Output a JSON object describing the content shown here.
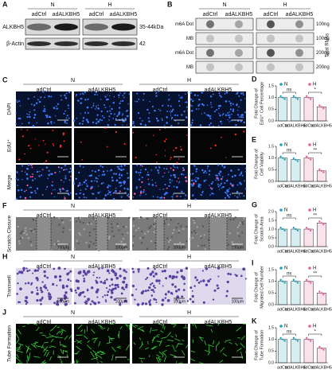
{
  "panel_A": {
    "label": "A",
    "groups": [
      "N",
      "H"
    ],
    "columns": [
      "adCtrl",
      "adALKBH5",
      "adCtrl",
      "adALKBH5"
    ],
    "rows": [
      {
        "name": "ALKBH5",
        "size": "35-44kDa"
      },
      {
        "name": "β-Actin",
        "size": "42"
      }
    ]
  },
  "panel_B": {
    "label": "B",
    "groups": [
      "N",
      "H"
    ],
    "columns": [
      "adCtrl",
      "adALKBH5",
      "adCtrl",
      "adALKBH5"
    ],
    "rows": [
      {
        "name": "m6A Dot",
        "amount": "100ng"
      },
      {
        "name": "MB",
        "amount": "100ng"
      },
      {
        "name": "m6A Dot",
        "amount": "200ng"
      },
      {
        "name": "MB",
        "amount": "200ng"
      }
    ],
    "side_label": "Total RNAs"
  },
  "image_panels": [
    {
      "label": "C",
      "groups": [
        "N",
        "H"
      ],
      "columns": [
        "adCtrl",
        "adALKBH5",
        "adCtrl",
        "adALKBH5"
      ],
      "rows": [
        "DAPI",
        "EdU⁺",
        "Merge"
      ],
      "scale_bar": "200μm"
    },
    {
      "label": "F",
      "groups": [
        "N",
        "H"
      ],
      "columns": [
        "adCtrl",
        "adALKBH5",
        "adCtrl",
        "adALKBH5"
      ],
      "rows": [
        "Scratch Closure"
      ],
      "scale_bar": "100μm"
    },
    {
      "label": "H",
      "groups": [
        "N",
        "H"
      ],
      "columns": [
        "adCtrl",
        "adALKBH5",
        "adCtrl",
        "adALKBH5"
      ],
      "rows": [
        "Transwell"
      ],
      "scale_bar": "100μm"
    },
    {
      "label": "J",
      "groups": [
        "N",
        "H"
      ],
      "columns": [
        "adCtrl",
        "adALKBH5",
        "adCtrl",
        "adALKBH5"
      ],
      "rows": [
        "Tube Formation"
      ],
      "scale_bar": "500μm"
    }
  ],
  "chart_data": [
    {
      "type": "bar",
      "label": "D",
      "ylabel": [
        "Fold Change of",
        "EdU⁺ Cell Percentage"
      ],
      "categories": [
        "adCtrl",
        "adALKBH5",
        "adCtrl",
        "adALKBH5"
      ],
      "series": [
        {
          "name": "N",
          "color": "#1ba3b8",
          "values": [
            1.0,
            1.0,
            null,
            null
          ]
        },
        {
          "name": "H",
          "color": "#e5609b",
          "values": [
            null,
            null,
            1.0,
            0.6
          ]
        }
      ],
      "ylim": [
        0,
        1.5
      ],
      "yticks": [
        {
          "value": 0,
          "label": "0.0"
        },
        0.5,
        {
          "value": 1,
          "label": "1.0"
        },
        1.5
      ],
      "annotations": [
        "ns",
        "*"
      ]
    },
    {
      "type": "bar",
      "label": "E",
      "ylabel": [
        "Fold Change of",
        "Cell Viability"
      ],
      "categories": [
        "adCtrl",
        "adALKBH5",
        "adCtrl",
        "adALKBH5"
      ],
      "series": [
        {
          "name": "N",
          "color": "#1ba3b8",
          "values": [
            1.0,
            0.93,
            null,
            null
          ]
        },
        {
          "name": "H",
          "color": "#e5609b",
          "values": [
            null,
            null,
            1.0,
            0.45
          ]
        }
      ],
      "ylim": [
        0,
        1.5
      ],
      "yticks": [
        {
          "value": 0,
          "label": "0.0"
        },
        0.5,
        {
          "value": 1,
          "label": "1.0"
        },
        1.5
      ],
      "annotations": [
        "ns",
        "**"
      ]
    },
    {
      "type": "bar",
      "label": "G",
      "ylabel": [
        "Fold Change of",
        "Scratch Area"
      ],
      "categories": [
        "adCtrl",
        "adALKBH5",
        "adCtrl",
        "adALKBH5"
      ],
      "series": [
        {
          "name": "N",
          "color": "#1ba3b8",
          "values": [
            1.0,
            1.0,
            null,
            null
          ]
        },
        {
          "name": "H",
          "color": "#e5609b",
          "values": [
            null,
            null,
            1.0,
            1.35
          ]
        }
      ],
      "ylim": [
        0,
        2
      ],
      "yticks": [
        {
          "value": 0,
          "label": "0.0"
        },
        0.5,
        {
          "value": 1,
          "label": "1.0"
        },
        1.5,
        {
          "value": 2,
          "label": "2.0"
        }
      ],
      "annotations": [
        "ns",
        "**"
      ]
    },
    {
      "type": "bar",
      "label": "I",
      "ylabel": [
        "Fold Change of",
        "Migrated Cell Number"
      ],
      "categories": [
        "adCtrl",
        "adALKBH5",
        "adCtrl",
        "adALKBH5"
      ],
      "series": [
        {
          "name": "N",
          "color": "#1ba3b8",
          "values": [
            1.0,
            1.0,
            null,
            null
          ]
        },
        {
          "name": "H",
          "color": "#e5609b",
          "values": [
            null,
            null,
            1.0,
            0.5
          ]
        }
      ],
      "ylim": [
        0,
        1.5
      ],
      "yticks": [
        {
          "value": 0,
          "label": "0.0"
        },
        0.5,
        {
          "value": 1,
          "label": "1.0"
        },
        1.5
      ],
      "annotations": [
        "ns",
        "**"
      ]
    },
    {
      "type": "bar",
      "label": "K",
      "ylabel": [
        "Fold Change of",
        "Tube Formation"
      ],
      "categories": [
        "adCtrl",
        "adALKBH5",
        "adCtrl",
        "adALKBH5"
      ],
      "series": [
        {
          "name": "N",
          "color": "#1ba3b8",
          "values": [
            1.0,
            1.0,
            null,
            null
          ]
        },
        {
          "name": "H",
          "color": "#e5609b",
          "values": [
            null,
            null,
            1.0,
            0.62
          ]
        }
      ],
      "ylim": [
        0,
        1.5
      ],
      "yticks": [
        {
          "value": 0,
          "label": "0.0"
        },
        0.5,
        {
          "value": 1,
          "label": "1.0"
        },
        1.5
      ],
      "annotations": [
        "ns",
        "*"
      ]
    }
  ]
}
